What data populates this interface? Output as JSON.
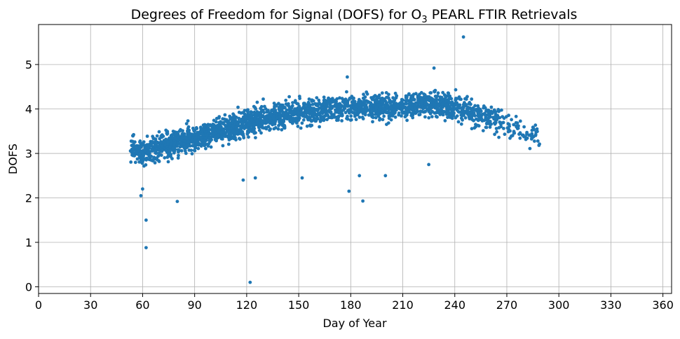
{
  "chart_data": {
    "type": "scatter",
    "title_main": "Degrees of Freedom for Signal (DOFS) for O",
    "title_sub": "3",
    "title_rest": " PEARL FTIR Retrievals",
    "xlabel": "Day of Year",
    "ylabel": "DOFS",
    "xlim": [
      0,
      365
    ],
    "ylim": [
      -0.15,
      5.9
    ],
    "xticks": [
      0,
      30,
      60,
      90,
      120,
      150,
      180,
      210,
      240,
      270,
      300,
      330,
      360
    ],
    "yticks": [
      0,
      1,
      2,
      3,
      4,
      5
    ],
    "grid": true,
    "marker_color": "#1f77b4",
    "trend": [
      [
        53,
        3.15
      ],
      [
        60,
        3.0
      ],
      [
        70,
        3.15
      ],
      [
        80,
        3.25
      ],
      [
        90,
        3.35
      ],
      [
        100,
        3.45
      ],
      [
        110,
        3.55
      ],
      [
        120,
        3.7
      ],
      [
        130,
        3.8
      ],
      [
        140,
        3.85
      ],
      [
        150,
        3.95
      ],
      [
        160,
        3.95
      ],
      [
        170,
        4.0
      ],
      [
        180,
        4.05
      ],
      [
        190,
        4.05
      ],
      [
        200,
        4.05
      ],
      [
        210,
        4.05
      ],
      [
        220,
        4.1
      ],
      [
        230,
        4.1
      ],
      [
        240,
        4.05
      ],
      [
        250,
        3.95
      ],
      [
        260,
        3.8
      ],
      [
        270,
        3.65
      ],
      [
        280,
        3.45
      ],
      [
        289,
        3.4
      ]
    ],
    "outliers": [
      [
        122,
        0.1
      ],
      [
        62,
        0.88
      ],
      [
        62,
        1.5
      ],
      [
        80,
        1.92
      ],
      [
        187,
        1.93
      ],
      [
        179,
        2.15
      ],
      [
        59,
        2.05
      ],
      [
        60,
        2.2
      ],
      [
        245,
        5.62
      ],
      [
        228,
        4.92
      ],
      [
        178,
        4.72
      ],
      [
        152,
        2.45
      ],
      [
        200,
        2.5
      ],
      [
        225,
        2.75
      ],
      [
        185,
        2.5
      ],
      [
        125,
        2.45
      ],
      [
        118,
        2.4
      ]
    ]
  }
}
